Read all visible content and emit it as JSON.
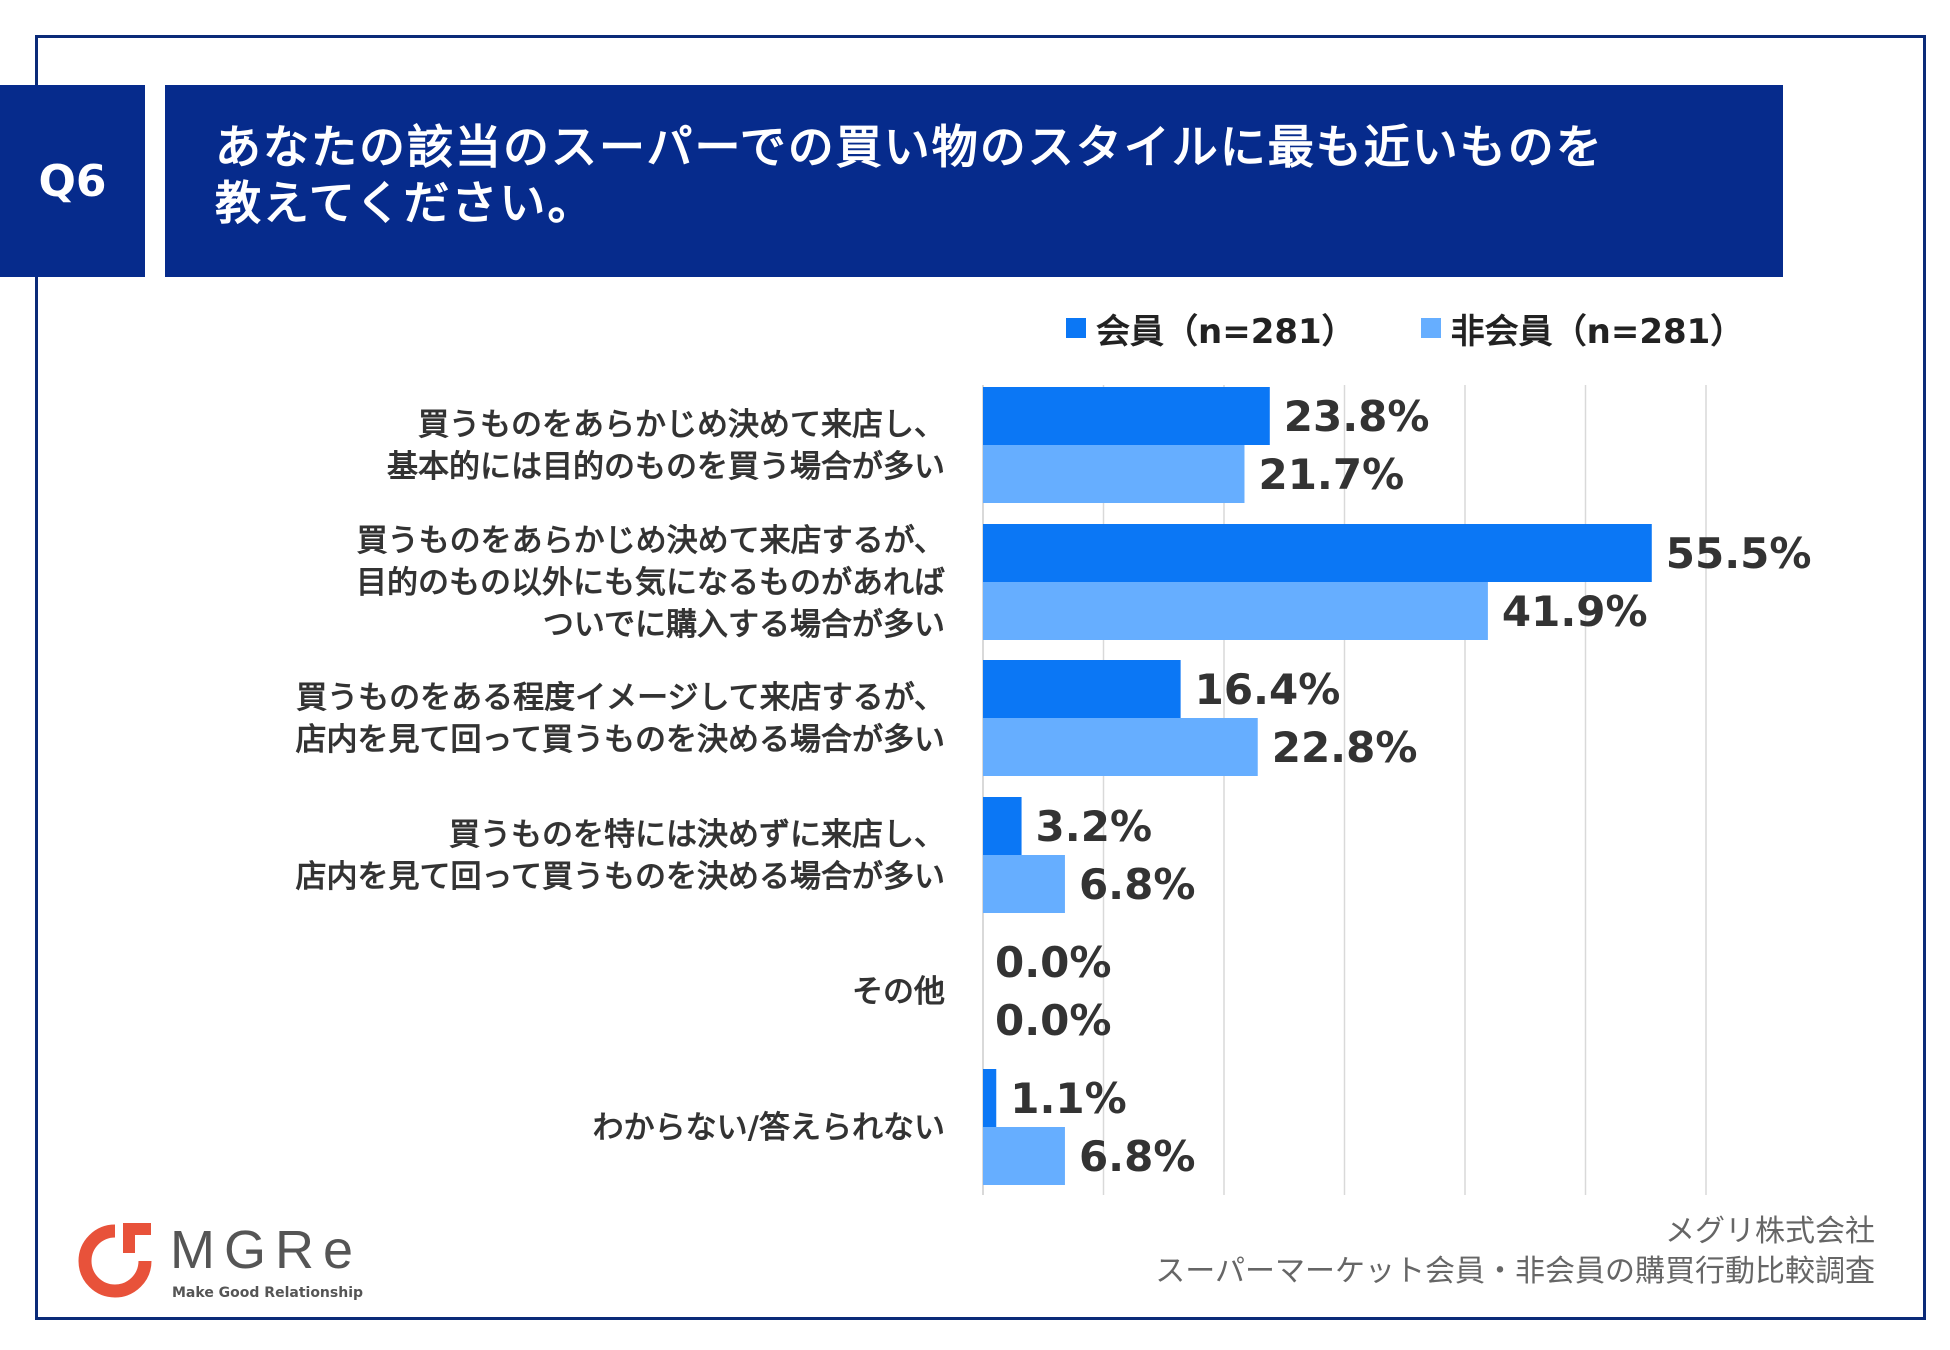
{
  "header": {
    "badge": "Q6",
    "title_line1": "あなたの該当のスーパーでの買い物のスタイルに最も近いものを",
    "title_line2": "教えてください。"
  },
  "colors": {
    "header_bg": "#062b8c",
    "series_member": "#0b77f5",
    "series_nonmember": "#66aeff",
    "grid": "#d9d9d9"
  },
  "chart_data": {
    "type": "bar",
    "orientation": "horizontal",
    "title": "あなたの該当のスーパーでの買い物のスタイルに最も近いものを教えてください。",
    "xlim": [
      0,
      60
    ],
    "grid": true,
    "legend_position": "top-right",
    "categories": [
      [
        "買うものをあらかじめ決めて来店し、",
        "基本的には目的のものを買う場合が多い"
      ],
      [
        "買うものをあらかじめ決めて来店するが、",
        "目的のもの以外にも気になるものがあれば",
        "ついでに購入する場合が多い"
      ],
      [
        "買うものをある程度イメージして来店するが、",
        "店内を見て回って買うものを決める場合が多い"
      ],
      [
        "買うものを特には決めずに来店し、",
        "店内を見て回って買うものを決める場合が多い"
      ],
      [
        "その他"
      ],
      [
        "わからない/答えられない"
      ]
    ],
    "series": [
      {
        "name": "会員（n=281）",
        "values": [
          23.8,
          55.5,
          16.4,
          3.2,
          0.0,
          1.1
        ],
        "labels": [
          "23.8%",
          "55.5%",
          "16.4%",
          "3.2%",
          "0.0%",
          "1.1%"
        ]
      },
      {
        "name": "非会員（n=281）",
        "values": [
          21.7,
          41.9,
          22.8,
          6.8,
          0.0,
          6.8
        ],
        "labels": [
          "21.7%",
          "41.9%",
          "22.8%",
          "6.8%",
          "0.0%",
          "6.8%"
        ]
      }
    ]
  },
  "logo": {
    "name": "MGRe",
    "tagline": "Make Good Relationship"
  },
  "source": {
    "company": "メグリ株式会社",
    "survey": "スーパーマーケット会員・非会員の購買行動比較調査"
  }
}
